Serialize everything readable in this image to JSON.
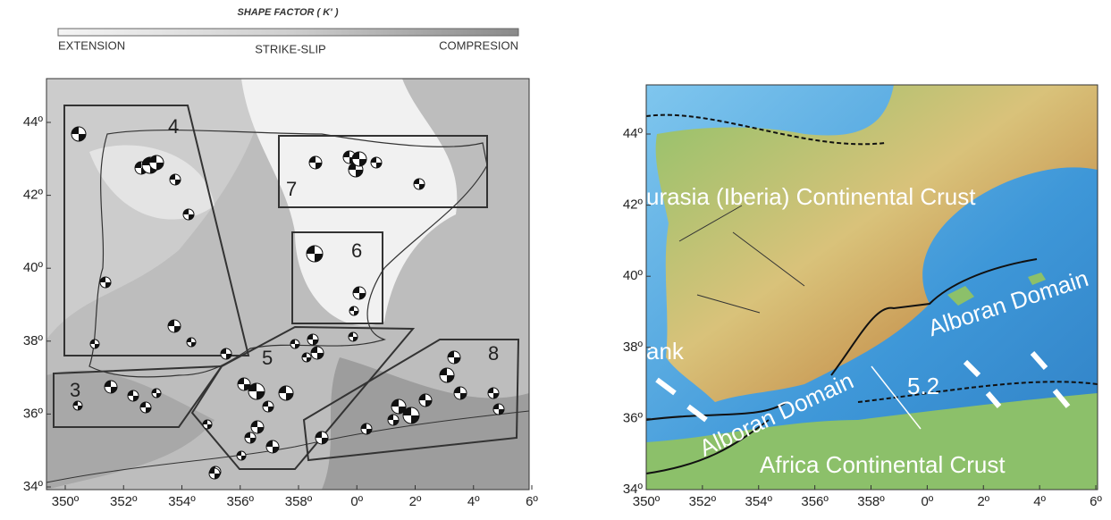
{
  "left_panel": {
    "legend": {
      "title": "SHAPE FACTOR ( K' )",
      "labels": [
        "EXTENSION",
        "STRIKE-SLIP",
        "COMPRESION"
      ]
    },
    "yticks": [
      "44º",
      "42º",
      "40º",
      "38º",
      "36º",
      "34º"
    ],
    "xticks": [
      "350º",
      "352º",
      "354º",
      "356º",
      "358º",
      "0º",
      "2º",
      "4º",
      "6º"
    ],
    "regions": [
      "3",
      "4",
      "5",
      "6",
      "7",
      "8"
    ]
  },
  "right_panel": {
    "yticks": [
      "44º",
      "42º",
      "40º",
      "38º",
      "36º",
      "34º"
    ],
    "xticks": [
      "350º",
      "352º",
      "354º",
      "356º",
      "358º",
      "0º",
      "2º",
      "4º",
      "6º"
    ],
    "labels": [
      "urasia (Iberia) Continental Crust",
      "Alboran Domain",
      "Alboran Domain",
      "Africa Continental Crust",
      "5.2",
      "ank"
    ]
  }
}
